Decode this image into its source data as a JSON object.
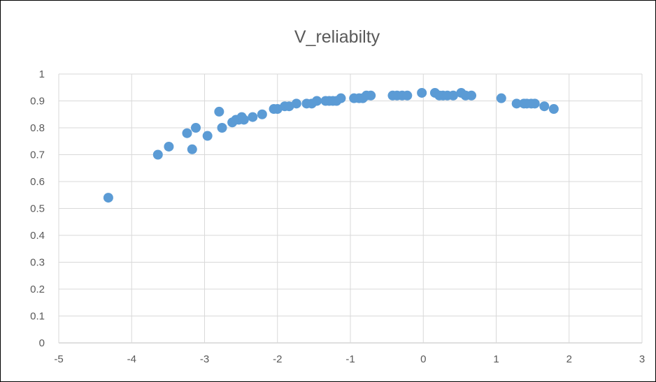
{
  "chart_data": {
    "type": "scatter",
    "title": "V_reliabilty",
    "xlabel": "",
    "ylabel": "",
    "xlim": [
      -5,
      3
    ],
    "ylim": [
      0,
      1
    ],
    "x_ticks": [
      -5,
      -4,
      -3,
      -2,
      -1,
      0,
      1,
      2,
      3
    ],
    "y_ticks": [
      0,
      0.1,
      0.2,
      0.3,
      0.4,
      0.5,
      0.6,
      0.7,
      0.8,
      0.9,
      1
    ],
    "grid": "horizontal and vertical",
    "legend": "none",
    "marker_color": "#5b9bd5",
    "points": [
      {
        "x": -4.32,
        "y": 0.54
      },
      {
        "x": -3.64,
        "y": 0.7
      },
      {
        "x": -3.49,
        "y": 0.73
      },
      {
        "x": -3.24,
        "y": 0.78
      },
      {
        "x": -3.12,
        "y": 0.8
      },
      {
        "x": -3.17,
        "y": 0.72
      },
      {
        "x": -2.96,
        "y": 0.77
      },
      {
        "x": -2.8,
        "y": 0.86
      },
      {
        "x": -2.76,
        "y": 0.8
      },
      {
        "x": -2.62,
        "y": 0.82
      },
      {
        "x": -2.57,
        "y": 0.83
      },
      {
        "x": -2.53,
        "y": 0.83
      },
      {
        "x": -2.49,
        "y": 0.84
      },
      {
        "x": -2.46,
        "y": 0.83
      },
      {
        "x": -2.34,
        "y": 0.84
      },
      {
        "x": -2.21,
        "y": 0.85
      },
      {
        "x": -2.05,
        "y": 0.87
      },
      {
        "x": -2.0,
        "y": 0.87
      },
      {
        "x": -1.9,
        "y": 0.88
      },
      {
        "x": -1.84,
        "y": 0.88
      },
      {
        "x": -1.74,
        "y": 0.89
      },
      {
        "x": -1.6,
        "y": 0.89
      },
      {
        "x": -1.53,
        "y": 0.89
      },
      {
        "x": -1.46,
        "y": 0.9
      },
      {
        "x": -1.34,
        "y": 0.9
      },
      {
        "x": -1.29,
        "y": 0.9
      },
      {
        "x": -1.24,
        "y": 0.9
      },
      {
        "x": -1.19,
        "y": 0.9
      },
      {
        "x": -1.13,
        "y": 0.91
      },
      {
        "x": -0.95,
        "y": 0.91
      },
      {
        "x": -0.88,
        "y": 0.91
      },
      {
        "x": -0.83,
        "y": 0.91
      },
      {
        "x": -0.78,
        "y": 0.92
      },
      {
        "x": -0.72,
        "y": 0.92
      },
      {
        "x": -0.42,
        "y": 0.92
      },
      {
        "x": -0.36,
        "y": 0.92
      },
      {
        "x": -0.29,
        "y": 0.92
      },
      {
        "x": -0.22,
        "y": 0.92
      },
      {
        "x": -0.02,
        "y": 0.93
      },
      {
        "x": 0.16,
        "y": 0.93
      },
      {
        "x": 0.22,
        "y": 0.92
      },
      {
        "x": 0.27,
        "y": 0.92
      },
      {
        "x": 0.33,
        "y": 0.92
      },
      {
        "x": 0.41,
        "y": 0.92
      },
      {
        "x": 0.52,
        "y": 0.93
      },
      {
        "x": 0.58,
        "y": 0.92
      },
      {
        "x": 0.66,
        "y": 0.92
      },
      {
        "x": 1.07,
        "y": 0.91
      },
      {
        "x": 1.28,
        "y": 0.89
      },
      {
        "x": 1.38,
        "y": 0.89
      },
      {
        "x": 1.42,
        "y": 0.89
      },
      {
        "x": 1.48,
        "y": 0.89
      },
      {
        "x": 1.53,
        "y": 0.89
      },
      {
        "x": 1.66,
        "y": 0.88
      },
      {
        "x": 1.79,
        "y": 0.87
      }
    ]
  }
}
